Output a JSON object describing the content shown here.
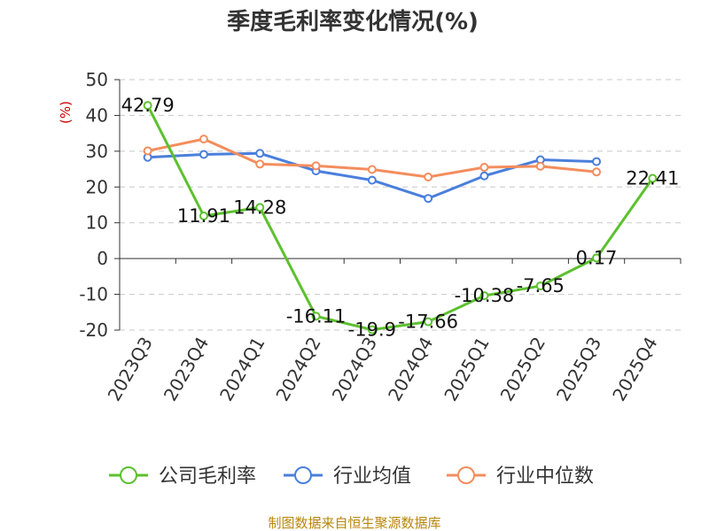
{
  "chart_data": {
    "type": "line",
    "title": "季度毛利率变化情况(%)",
    "ylabel": "(%)",
    "ylim": [
      -20,
      50
    ],
    "yticks": [
      50,
      40,
      30,
      20,
      10,
      0,
      -10,
      -20
    ],
    "grid": true,
    "legend_position": "bottom",
    "categories": [
      "2023Q3",
      "2023Q4",
      "2024Q1",
      "2024Q2",
      "2024Q3",
      "2024Q4",
      "2025Q1",
      "2025Q2",
      "2025Q3",
      "2025Q4"
    ],
    "series": [
      {
        "name": "公司毛利率",
        "color": "#5cc12e",
        "values": [
          42.79,
          11.91,
          14.28,
          -16.11,
          -19.9,
          -17.66,
          -10.38,
          -7.65,
          0.17,
          22.41
        ],
        "labels": [
          "42.79",
          "11.91",
          "14.28",
          "-16.11",
          "-19.9",
          "-17.66",
          "-10.38",
          "-7.65",
          "0.17",
          "22.41"
        ]
      },
      {
        "name": "行业均值",
        "color": "#4a7fdc",
        "values": [
          28.3,
          29.1,
          29.4,
          24.5,
          21.9,
          16.8,
          23.1,
          27.6,
          27.1,
          null
        ]
      },
      {
        "name": "行业中位数",
        "color": "#f48d5c",
        "values": [
          30.1,
          33.4,
          26.4,
          25.9,
          24.9,
          22.8,
          25.5,
          25.8,
          24.2,
          null
        ]
      }
    ],
    "source": "制图数据来自恒生聚源数据库"
  }
}
